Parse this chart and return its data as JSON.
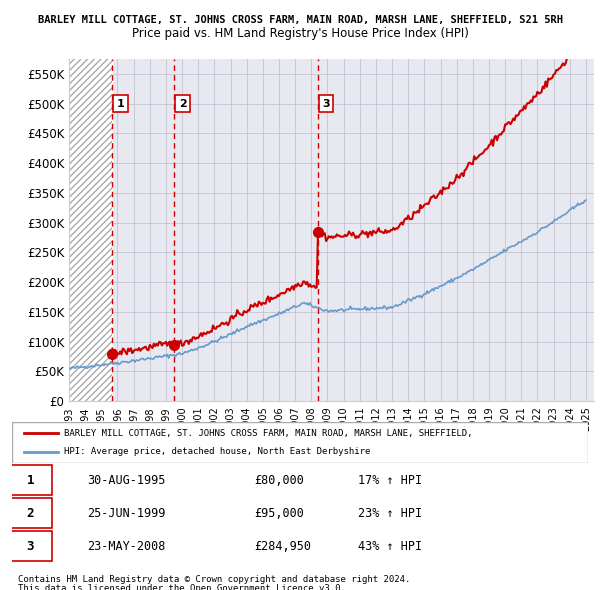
{
  "title_top": "BARLEY MILL COTTAGE, ST. JOHNS CROSS FARM, MAIN ROAD, MARSH LANE, SHEFFIELD, S21 5RH",
  "title_sub": "Price paid vs. HM Land Registry's House Price Index (HPI)",
  "ylabel": "",
  "ylim": [
    0,
    575000
  ],
  "yticks": [
    0,
    50000,
    100000,
    150000,
    200000,
    250000,
    300000,
    350000,
    400000,
    450000,
    500000,
    550000
  ],
  "ytick_labels": [
    "£0",
    "£50K",
    "£100K",
    "£150K",
    "£200K",
    "£250K",
    "£300K",
    "£350K",
    "£400K",
    "£450K",
    "£500K",
    "£550K"
  ],
  "year_start": 1993,
  "year_end": 2025,
  "hpi_color": "#6699cc",
  "price_color": "#cc0000",
  "sale_marker_color": "#cc0000",
  "vline_color": "#cc0000",
  "sale_points": [
    {
      "year": 1995.66,
      "price": 80000,
      "label": "1"
    },
    {
      "year": 1999.49,
      "price": 95000,
      "label": "2"
    },
    {
      "year": 2008.39,
      "price": 284950,
      "label": "3"
    }
  ],
  "legend_property": "BARLEY MILL COTTAGE, ST. JOHNS CROSS FARM, MAIN ROAD, MARSH LANE, SHEFFIELD,",
  "legend_hpi": "HPI: Average price, detached house, North East Derbyshire",
  "table_rows": [
    {
      "num": "1",
      "date": "30-AUG-1995",
      "price": "£80,000",
      "hpi": "17% ↑ HPI"
    },
    {
      "num": "2",
      "date": "25-JUN-1999",
      "price": "£95,000",
      "hpi": "23% ↑ HPI"
    },
    {
      "num": "3",
      "date": "23-MAY-2008",
      "price": "£284,950",
      "hpi": "43% ↑ HPI"
    }
  ],
  "footnote1": "Contains HM Land Registry data © Crown copyright and database right 2024.",
  "footnote2": "This data is licensed under the Open Government Licence v3.0.",
  "bg_hatch_color": "#e8e8f0",
  "grid_color": "#bbbbcc"
}
